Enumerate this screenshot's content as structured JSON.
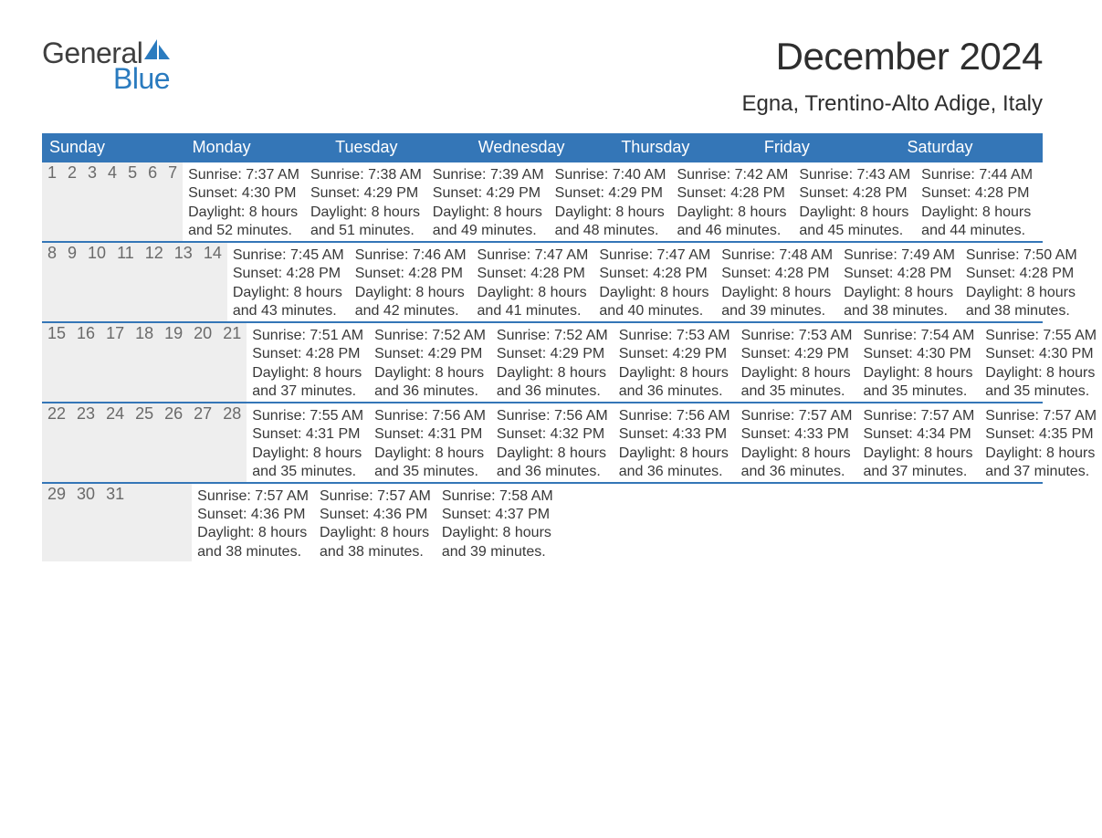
{
  "brand": {
    "top": "General",
    "bottom": "Blue",
    "sail_color": "#2a7bbf"
  },
  "title": "December 2024",
  "location": "Egna, Trentino-Alto Adige, Italy",
  "colors": {
    "header_bg": "#3476b7",
    "header_text": "#ffffff",
    "week_border": "#3476b7",
    "daynum_bg": "#eeeeee",
    "daynum_text": "#6a6a6a",
    "body_text": "#383838",
    "page_bg": "#ffffff"
  },
  "day_headers": [
    "Sunday",
    "Monday",
    "Tuesday",
    "Wednesday",
    "Thursday",
    "Friday",
    "Saturday"
  ],
  "weeks": [
    [
      {
        "n": "1",
        "sr": "7:37 AM",
        "ss": "4:30 PM",
        "dl1": "8 hours",
        "dl2": "and 52 minutes."
      },
      {
        "n": "2",
        "sr": "7:38 AM",
        "ss": "4:29 PM",
        "dl1": "8 hours",
        "dl2": "and 51 minutes."
      },
      {
        "n": "3",
        "sr": "7:39 AM",
        "ss": "4:29 PM",
        "dl1": "8 hours",
        "dl2": "and 49 minutes."
      },
      {
        "n": "4",
        "sr": "7:40 AM",
        "ss": "4:29 PM",
        "dl1": "8 hours",
        "dl2": "and 48 minutes."
      },
      {
        "n": "5",
        "sr": "7:42 AM",
        "ss": "4:28 PM",
        "dl1": "8 hours",
        "dl2": "and 46 minutes."
      },
      {
        "n": "6",
        "sr": "7:43 AM",
        "ss": "4:28 PM",
        "dl1": "8 hours",
        "dl2": "and 45 minutes."
      },
      {
        "n": "7",
        "sr": "7:44 AM",
        "ss": "4:28 PM",
        "dl1": "8 hours",
        "dl2": "and 44 minutes."
      }
    ],
    [
      {
        "n": "8",
        "sr": "7:45 AM",
        "ss": "4:28 PM",
        "dl1": "8 hours",
        "dl2": "and 43 minutes."
      },
      {
        "n": "9",
        "sr": "7:46 AM",
        "ss": "4:28 PM",
        "dl1": "8 hours",
        "dl2": "and 42 minutes."
      },
      {
        "n": "10",
        "sr": "7:47 AM",
        "ss": "4:28 PM",
        "dl1": "8 hours",
        "dl2": "and 41 minutes."
      },
      {
        "n": "11",
        "sr": "7:47 AM",
        "ss": "4:28 PM",
        "dl1": "8 hours",
        "dl2": "and 40 minutes."
      },
      {
        "n": "12",
        "sr": "7:48 AM",
        "ss": "4:28 PM",
        "dl1": "8 hours",
        "dl2": "and 39 minutes."
      },
      {
        "n": "13",
        "sr": "7:49 AM",
        "ss": "4:28 PM",
        "dl1": "8 hours",
        "dl2": "and 38 minutes."
      },
      {
        "n": "14",
        "sr": "7:50 AM",
        "ss": "4:28 PM",
        "dl1": "8 hours",
        "dl2": "and 38 minutes."
      }
    ],
    [
      {
        "n": "15",
        "sr": "7:51 AM",
        "ss": "4:28 PM",
        "dl1": "8 hours",
        "dl2": "and 37 minutes."
      },
      {
        "n": "16",
        "sr": "7:52 AM",
        "ss": "4:29 PM",
        "dl1": "8 hours",
        "dl2": "and 36 minutes."
      },
      {
        "n": "17",
        "sr": "7:52 AM",
        "ss": "4:29 PM",
        "dl1": "8 hours",
        "dl2": "and 36 minutes."
      },
      {
        "n": "18",
        "sr": "7:53 AM",
        "ss": "4:29 PM",
        "dl1": "8 hours",
        "dl2": "and 36 minutes."
      },
      {
        "n": "19",
        "sr": "7:53 AM",
        "ss": "4:29 PM",
        "dl1": "8 hours",
        "dl2": "and 35 minutes."
      },
      {
        "n": "20",
        "sr": "7:54 AM",
        "ss": "4:30 PM",
        "dl1": "8 hours",
        "dl2": "and 35 minutes."
      },
      {
        "n": "21",
        "sr": "7:55 AM",
        "ss": "4:30 PM",
        "dl1": "8 hours",
        "dl2": "and 35 minutes."
      }
    ],
    [
      {
        "n": "22",
        "sr": "7:55 AM",
        "ss": "4:31 PM",
        "dl1": "8 hours",
        "dl2": "and 35 minutes."
      },
      {
        "n": "23",
        "sr": "7:56 AM",
        "ss": "4:31 PM",
        "dl1": "8 hours",
        "dl2": "and 35 minutes."
      },
      {
        "n": "24",
        "sr": "7:56 AM",
        "ss": "4:32 PM",
        "dl1": "8 hours",
        "dl2": "and 36 minutes."
      },
      {
        "n": "25",
        "sr": "7:56 AM",
        "ss": "4:33 PM",
        "dl1": "8 hours",
        "dl2": "and 36 minutes."
      },
      {
        "n": "26",
        "sr": "7:57 AM",
        "ss": "4:33 PM",
        "dl1": "8 hours",
        "dl2": "and 36 minutes."
      },
      {
        "n": "27",
        "sr": "7:57 AM",
        "ss": "4:34 PM",
        "dl1": "8 hours",
        "dl2": "and 37 minutes."
      },
      {
        "n": "28",
        "sr": "7:57 AM",
        "ss": "4:35 PM",
        "dl1": "8 hours",
        "dl2": "and 37 minutes."
      }
    ],
    [
      {
        "n": "29",
        "sr": "7:57 AM",
        "ss": "4:36 PM",
        "dl1": "8 hours",
        "dl2": "and 38 minutes."
      },
      {
        "n": "30",
        "sr": "7:57 AM",
        "ss": "4:36 PM",
        "dl1": "8 hours",
        "dl2": "and 38 minutes."
      },
      {
        "n": "31",
        "sr": "7:58 AM",
        "ss": "4:37 PM",
        "dl1": "8 hours",
        "dl2": "and 39 minutes."
      },
      {
        "empty": true
      },
      {
        "empty": true
      },
      {
        "empty": true
      },
      {
        "empty": true
      }
    ]
  ],
  "labels": {
    "sunrise_prefix": "Sunrise: ",
    "sunset_prefix": "Sunset: ",
    "daylight_prefix": "Daylight: "
  }
}
